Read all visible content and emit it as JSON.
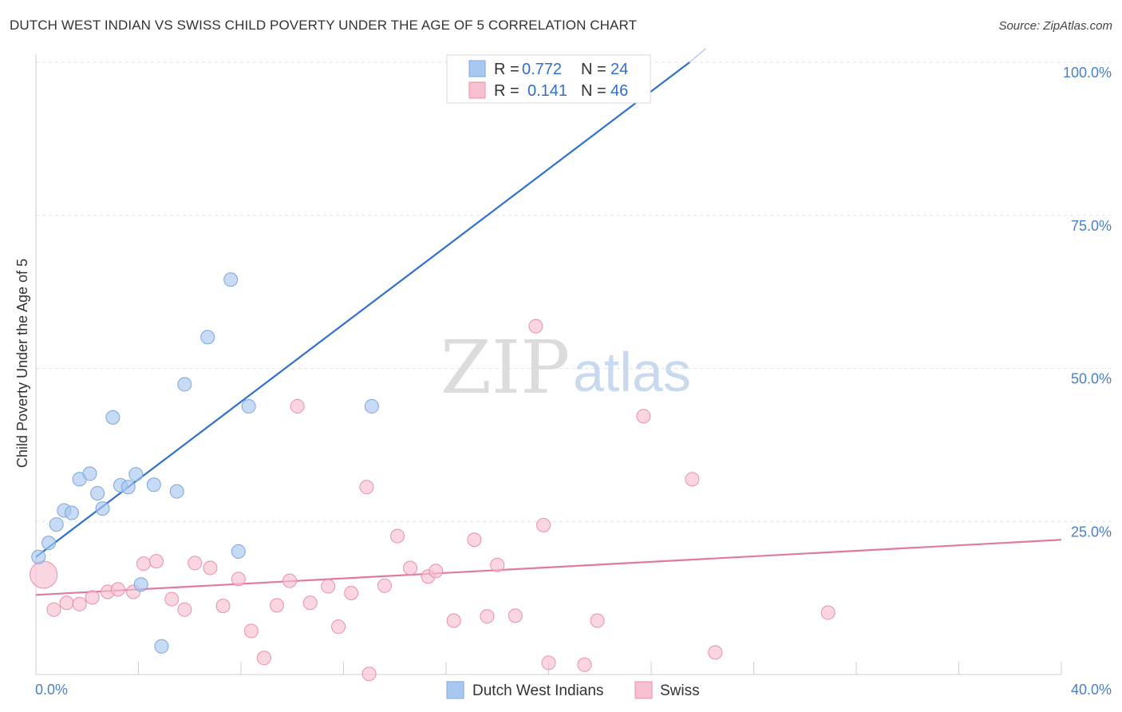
{
  "title": "DUTCH WEST INDIAN VS SWISS CHILD POVERTY UNDER THE AGE OF 5 CORRELATION CHART",
  "source": "Source: ZipAtlas.com",
  "watermark": {
    "zip": "ZIP",
    "atlas": "atlas"
  },
  "legend": {
    "rows": [
      {
        "r_label": "R = ",
        "r_value": "0.772",
        "n_label": "N = ",
        "n_value": "24",
        "color": "#a9c8f0",
        "border": "#7aa6e0"
      },
      {
        "r_label": "R = ",
        "r_value": "0.141",
        "n_label": "N = ",
        "n_value": "46",
        "color": "#f7c0d0",
        "border": "#ea8fab"
      }
    ]
  },
  "bottom_legend": [
    {
      "label": "Dutch West Indians",
      "color": "#a9c8f0",
      "border": "#7aa6e0"
    },
    {
      "label": "Swiss",
      "color": "#f7c0d0",
      "border": "#ea8fab"
    }
  ],
  "chart_data": {
    "type": "scatter",
    "title": "DUTCH WEST INDIAN VS SWISS CHILD POVERTY UNDER THE AGE OF 5 CORRELATION CHART",
    "xlabel": "",
    "ylabel": "Child Poverty Under the Age of 5",
    "xlim": [
      0,
      40
    ],
    "ylim": [
      0,
      100
    ],
    "x_tick_labels": [
      "0.0%",
      "40.0%"
    ],
    "y_ticks": [
      25,
      50,
      75,
      100
    ],
    "y_tick_labels": [
      "25.0%",
      "50.0%",
      "75.0%",
      "100.0%"
    ],
    "grid": true,
    "legend_position": "top-center",
    "series": [
      {
        "name": "Dutch West Indians",
        "color": "#a9c8f0",
        "stroke": "#7aa6e0",
        "trend": {
          "x": [
            0,
            25.5
          ],
          "y": [
            19.2,
            100
          ],
          "color": "#2f6fcf"
        },
        "points": [
          {
            "x": 0.1,
            "y": 19.2
          },
          {
            "x": 0.5,
            "y": 21.5
          },
          {
            "x": 0.8,
            "y": 24.5
          },
          {
            "x": 1.1,
            "y": 26.8
          },
          {
            "x": 1.4,
            "y": 26.4
          },
          {
            "x": 1.7,
            "y": 31.9
          },
          {
            "x": 2.1,
            "y": 32.8
          },
          {
            "x": 2.4,
            "y": 29.6
          },
          {
            "x": 2.6,
            "y": 27.1
          },
          {
            "x": 3.0,
            "y": 42.0
          },
          {
            "x": 3.3,
            "y": 30.9
          },
          {
            "x": 3.6,
            "y": 30.6
          },
          {
            "x": 3.9,
            "y": 32.7
          },
          {
            "x": 4.1,
            "y": 14.7
          },
          {
            "x": 4.6,
            "y": 31.0
          },
          {
            "x": 4.9,
            "y": 4.6
          },
          {
            "x": 5.5,
            "y": 29.9
          },
          {
            "x": 5.8,
            "y": 47.4
          },
          {
            "x": 6.7,
            "y": 55.1
          },
          {
            "x": 7.6,
            "y": 64.5
          },
          {
            "x": 7.9,
            "y": 20.1
          },
          {
            "x": 8.3,
            "y": 43.8
          },
          {
            "x": 13.1,
            "y": 43.8
          },
          {
            "x": 21.5,
            "y": 100
          }
        ]
      },
      {
        "name": "Swiss",
        "color": "#f7c0d0",
        "stroke": "#ea8fab",
        "trend": {
          "x": [
            0,
            40
          ],
          "y": [
            13.0,
            22.0
          ],
          "color": "#e07aa0"
        },
        "points": [
          {
            "x": 0.3,
            "y": 16.3,
            "big": true
          },
          {
            "x": 0.7,
            "y": 10.6
          },
          {
            "x": 1.2,
            "y": 11.7
          },
          {
            "x": 1.7,
            "y": 11.5
          },
          {
            "x": 2.2,
            "y": 12.6
          },
          {
            "x": 2.8,
            "y": 13.5
          },
          {
            "x": 3.2,
            "y": 13.9
          },
          {
            "x": 3.8,
            "y": 13.5
          },
          {
            "x": 4.2,
            "y": 18.1
          },
          {
            "x": 4.7,
            "y": 18.5
          },
          {
            "x": 5.3,
            "y": 12.3
          },
          {
            "x": 5.8,
            "y": 10.6
          },
          {
            "x": 6.2,
            "y": 18.2
          },
          {
            "x": 6.8,
            "y": 17.4
          },
          {
            "x": 7.3,
            "y": 11.2
          },
          {
            "x": 7.9,
            "y": 15.6
          },
          {
            "x": 8.4,
            "y": 7.1
          },
          {
            "x": 8.9,
            "y": 2.7
          },
          {
            "x": 9.4,
            "y": 11.3
          },
          {
            "x": 9.9,
            "y": 15.3
          },
          {
            "x": 10.2,
            "y": 43.8
          },
          {
            "x": 10.7,
            "y": 11.7
          },
          {
            "x": 11.4,
            "y": 14.4
          },
          {
            "x": 11.8,
            "y": 7.8
          },
          {
            "x": 12.3,
            "y": 13.3
          },
          {
            "x": 12.9,
            "y": 30.6
          },
          {
            "x": 13.0,
            "y": 0.1
          },
          {
            "x": 13.6,
            "y": 14.5
          },
          {
            "x": 14.1,
            "y": 22.6
          },
          {
            "x": 14.6,
            "y": 17.4
          },
          {
            "x": 15.3,
            "y": 16.0
          },
          {
            "x": 15.6,
            "y": 16.9
          },
          {
            "x": 16.3,
            "y": 8.8
          },
          {
            "x": 17.1,
            "y": 22.0
          },
          {
            "x": 17.6,
            "y": 9.5
          },
          {
            "x": 18.0,
            "y": 17.9
          },
          {
            "x": 18.7,
            "y": 9.6
          },
          {
            "x": 19.5,
            "y": 56.9
          },
          {
            "x": 19.8,
            "y": 24.4
          },
          {
            "x": 20.0,
            "y": 1.9
          },
          {
            "x": 21.4,
            "y": 1.6
          },
          {
            "x": 21.9,
            "y": 8.8
          },
          {
            "x": 23.7,
            "y": 42.2
          },
          {
            "x": 25.6,
            "y": 31.9
          },
          {
            "x": 26.5,
            "y": 3.6
          },
          {
            "x": 30.9,
            "y": 10.1
          }
        ]
      }
    ]
  }
}
